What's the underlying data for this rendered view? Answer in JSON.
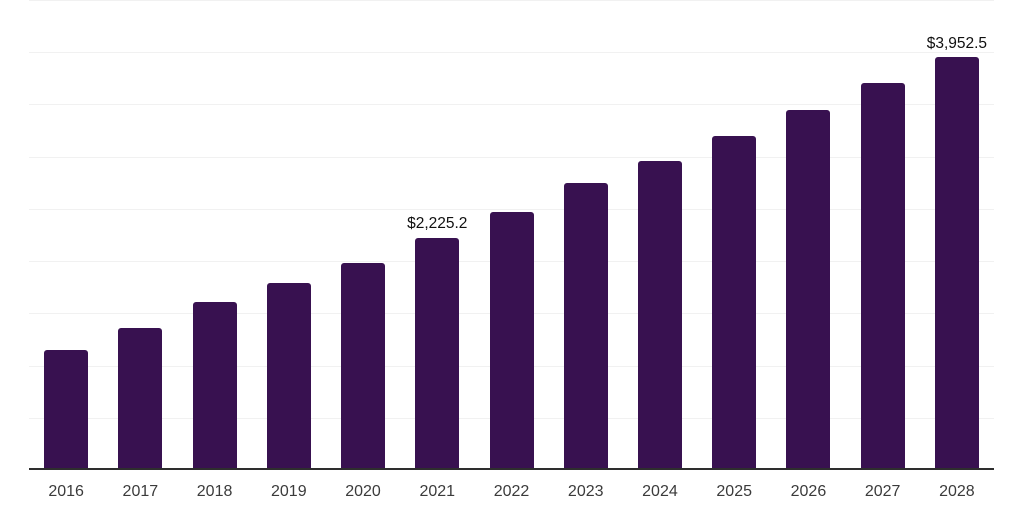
{
  "chart_data": {
    "type": "bar",
    "title": "",
    "xlabel": "",
    "ylabel": "",
    "categories": [
      "2016",
      "2017",
      "2018",
      "2019",
      "2020",
      "2021",
      "2022",
      "2023",
      "2024",
      "2025",
      "2026",
      "2027",
      "2028"
    ],
    "values": [
      1150,
      1360,
      1610,
      1793,
      1985,
      2225.2,
      2474,
      2750,
      2962,
      3196,
      3445,
      3708,
      3952.5
    ],
    "labeled_points": [
      {
        "category": "2021",
        "label": "$2,225.2"
      },
      {
        "category": "2028",
        "label": "$3,952.5"
      }
    ],
    "ylim": [
      0,
      4500
    ],
    "grid_step": 500,
    "grid": true,
    "legend": false,
    "colors": {
      "bar": "#381150",
      "gridline": "#f1f1f1",
      "axis_line": "#2e2e2e",
      "tick_label": "#3b3b3b",
      "data_label": "#101010",
      "background": "#ffffff"
    }
  }
}
